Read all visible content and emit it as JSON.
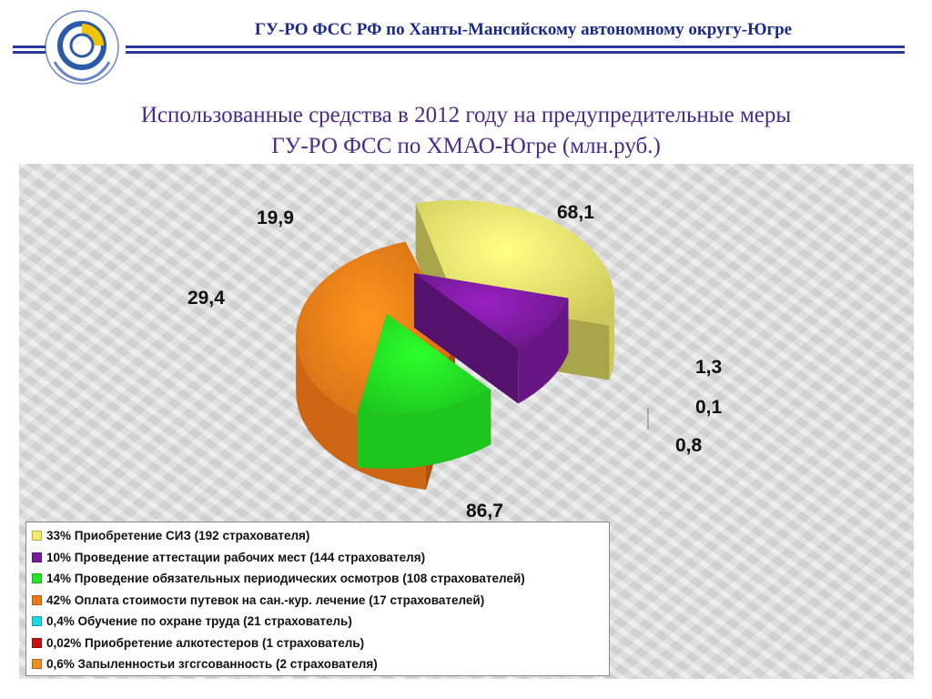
{
  "header": {
    "org_title": "ГУ-РО ФСС РФ по Ханты-Мансийскому автономному округу-Югре"
  },
  "slide": {
    "title_line1": "Использованные средства в 2012 году на предупредительные меры",
    "title_line2": "ГУ-РО ФСС  по ХМАО-Югре  (млн.руб.)"
  },
  "chart_data": {
    "type": "pie",
    "units": "млн.руб.",
    "slices": [
      {
        "label": "33% Приобретение СИЗ (192 страхователя)",
        "value": 68.1,
        "value_label": "68,1",
        "color": "#f2ec6a"
      },
      {
        "label": "10% Проведение аттестации рабочих мест (144 страхователя)",
        "value": 19.9,
        "value_label": "19,9",
        "color": "#7a1a9c"
      },
      {
        "label": "14% Проведение обязательных периодических осмотров (108 страхователей)",
        "value": 29.4,
        "value_label": "29,4",
        "color": "#22e822"
      },
      {
        "label": "42% Оплата стоимости путевок на сан.-кур. лечение (17 страхователей)",
        "value": 86.7,
        "value_label": "86,7",
        "color": "#f07818"
      },
      {
        "label": "0,4% Обучение по охране труда (21 страхователь)",
        "value": 0.8,
        "value_label": "0,8",
        "color": "#18d8e8"
      },
      {
        "label": "0,02% Приобретение алкотестеров (1 страхователь)",
        "value": 0.1,
        "value_label": "0,1",
        "color": "#c81010"
      },
      {
        "label": "0,6% Запыленностьи згсгсованность (2 страхователя)",
        "value": 1.3,
        "value_label": "1,3",
        "color": "#f08c20"
      }
    ],
    "legend_placement": "bottom-left"
  }
}
